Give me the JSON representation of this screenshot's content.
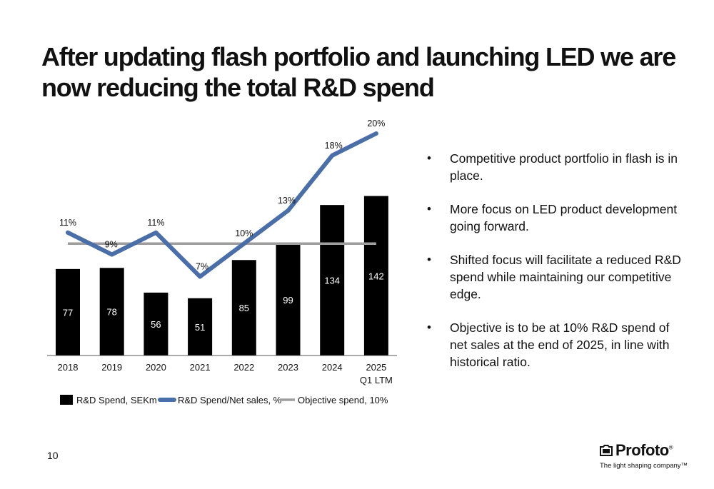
{
  "title": "After updating flash portfolio and launching LED we are now reducing the total R&D spend",
  "page_number": "10",
  "logo": {
    "wordmark": "Profoto",
    "reg": "®",
    "tagline": "The light shaping company™"
  },
  "bullets": [
    "Competitive product portfolio in flash is in place.",
    "More focus on LED product development going forward.",
    "Shifted focus will facilitate a reduced R&D spend while maintaining our competitive edge.",
    "Objective is to be at 10% R&D spend of net sales at the end of 2025, in line with historical ratio."
  ],
  "bullet_symbol": "•",
  "colors": {
    "bar": "#000000",
    "line": "#4a6ea8",
    "objective": "#9e9e9e",
    "text": "#111111"
  },
  "chart_data": {
    "type": "bar",
    "categories": [
      "2018",
      "2019",
      "2020",
      "2021",
      "2022",
      "2023",
      "2024",
      "2025\nQ1 LTM"
    ],
    "category_labels": [
      [
        "2018"
      ],
      [
        "2019"
      ],
      [
        "2020"
      ],
      [
        "2021"
      ],
      [
        "2022"
      ],
      [
        "2023"
      ],
      [
        "2024"
      ],
      [
        "2025",
        "Q1 LTM"
      ]
    ],
    "series": [
      {
        "name": "R&D Spend, SEKm",
        "type": "bar",
        "values": [
          77,
          78,
          56,
          51,
          85,
          99,
          134,
          142
        ],
        "labels": [
          "77",
          "78",
          "56",
          "51",
          "85",
          "99",
          "134",
          "142"
        ]
      },
      {
        "name": "R&D Spend/Net sales, %",
        "type": "line",
        "values": [
          11,
          9,
          11,
          7,
          10,
          13,
          18,
          20
        ],
        "labels": [
          "11%",
          "9%",
          "11%",
          "7%",
          "10%",
          "13%",
          "18%",
          "20%"
        ]
      },
      {
        "name": "Objective spend, 10%",
        "type": "line",
        "values": [
          10,
          10,
          10,
          10,
          10,
          10,
          10,
          10
        ]
      }
    ],
    "bar_axis_range": [
      0,
      143
    ],
    "pct_axis_range": [
      6.9,
      20
    ],
    "grid": false,
    "legend": "bottom"
  }
}
